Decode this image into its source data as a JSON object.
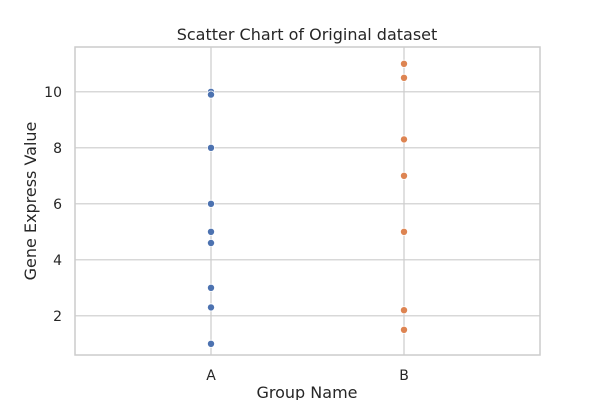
{
  "chart_data": {
    "type": "scatter",
    "title": "Scatter Chart of Original dataset",
    "xlabel": "Group Name",
    "ylabel": "Gene Express Value",
    "categories": [
      "A",
      "B"
    ],
    "ylim": [
      0.6,
      11.6
    ],
    "yticks": [
      "2",
      "4",
      "6",
      "8",
      "10"
    ],
    "grid": true,
    "series": [
      {
        "category": "A",
        "color": "#4c72b0",
        "values": [
          10.0,
          9.9,
          8.0,
          6.0,
          5.0,
          4.6,
          3.0,
          2.3,
          1.0
        ]
      },
      {
        "category": "B",
        "color": "#dd8452",
        "values": [
          11.0,
          10.5,
          8.3,
          7.0,
          5.0,
          2.2,
          1.5
        ]
      }
    ]
  }
}
